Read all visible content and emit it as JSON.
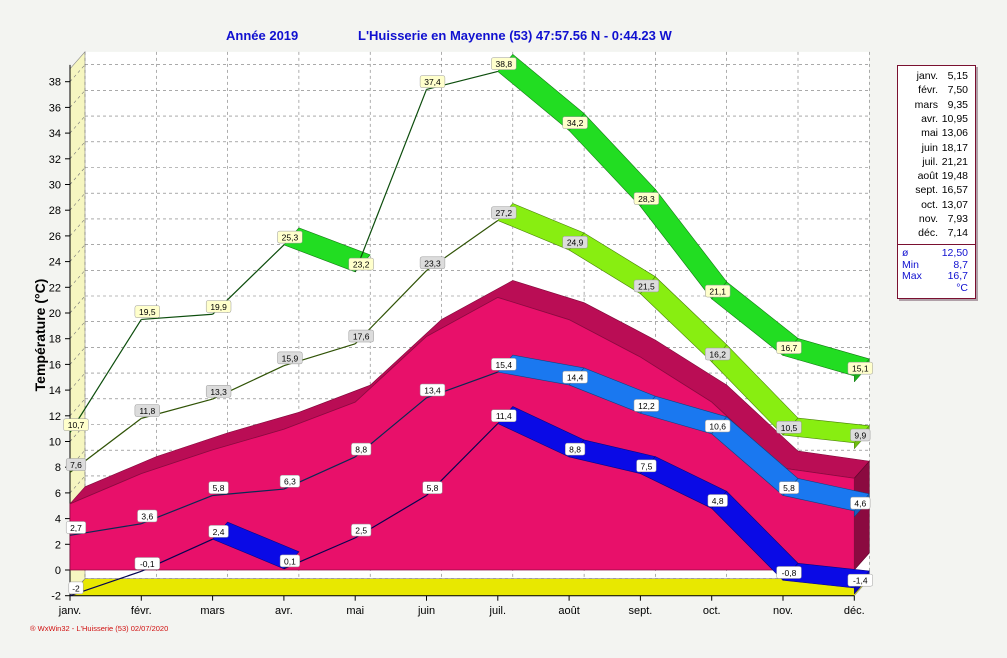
{
  "header": {
    "year_label": "Année  2019",
    "station": "L'Huisserie en Mayenne (53) 47:57.56 N - 0:44.23 W"
  },
  "footer": "® WxWin32 - L'Huisserie (53)  02/07/2020",
  "colors": {
    "abs_max": "#22dd22",
    "mean_max": "#88ee11",
    "mean_band": "#e8106a",
    "mean_min": "#1a78f0",
    "abs_min": "#0a0ae6",
    "axis": "#e8e800"
  },
  "chart_data": {
    "type": "area",
    "title": "",
    "ylabel": "Température  (°C)",
    "xlabel": "",
    "ylim": [
      -2,
      39
    ],
    "yticks": [
      -2,
      0,
      2,
      4,
      6,
      8,
      10,
      12,
      14,
      16,
      18,
      20,
      22,
      24,
      26,
      28,
      30,
      32,
      34,
      36,
      38
    ],
    "grid": true,
    "categories": [
      "janv.",
      "févr.",
      "mars",
      "avr.",
      "mai",
      "juin",
      "juil.",
      "août",
      "sept.",
      "oct.",
      "nov.",
      "déc."
    ],
    "series": [
      {
        "key": "abs_max",
        "values": [
          10.7,
          19.5,
          19.9,
          25.3,
          23.2,
          37.4,
          38.8,
          34.2,
          28.3,
          21.1,
          16.7,
          15.1
        ]
      },
      {
        "key": "mean_max",
        "values": [
          7.6,
          11.8,
          13.3,
          15.9,
          17.6,
          23.3,
          27.2,
          24.9,
          21.5,
          16.2,
          10.5,
          9.9
        ]
      },
      {
        "key": "monthly_mean",
        "values": [
          5.15,
          7.5,
          9.35,
          10.95,
          13.06,
          18.17,
          21.21,
          19.48,
          16.57,
          13.07,
          7.93,
          7.14
        ]
      },
      {
        "key": "mean_min",
        "values": [
          2.7,
          3.6,
          5.8,
          6.3,
          8.8,
          13.4,
          15.4,
          14.4,
          12.2,
          10.6,
          5.8,
          4.6
        ]
      },
      {
        "key": "abs_min",
        "values": [
          -2.0,
          -0.1,
          2.4,
          0.1,
          2.5,
          5.8,
          11.4,
          8.8,
          7.5,
          4.8,
          -0.8,
          -1.4
        ]
      }
    ],
    "legend": {
      "position": "right",
      "monthly": [
        {
          "month": "janv.",
          "value": "5,15"
        },
        {
          "month": "févr.",
          "value": "7,50"
        },
        {
          "month": "mars",
          "value": "9,35"
        },
        {
          "month": "avr.",
          "value": "10,95"
        },
        {
          "month": "mai",
          "value": "13,06"
        },
        {
          "month": "juin",
          "value": "18,17"
        },
        {
          "month": "juil.",
          "value": "21,21"
        },
        {
          "month": "août",
          "value": "19,48"
        },
        {
          "month": "sept.",
          "value": "16,57"
        },
        {
          "month": "oct.",
          "value": "13,07"
        },
        {
          "month": "nov.",
          "value": "7,93"
        },
        {
          "month": "déc.",
          "value": "7,14"
        }
      ],
      "stats": [
        {
          "label": "ø",
          "value": "12,50"
        },
        {
          "label": "Min",
          "value": "8,7"
        },
        {
          "label": "Max",
          "value": "16,7"
        }
      ],
      "unit": "°C"
    }
  }
}
